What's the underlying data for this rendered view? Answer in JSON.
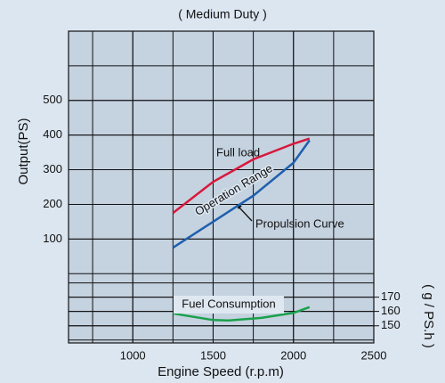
{
  "chart_data": {
    "type": "line",
    "title": "( Medium Duty )",
    "x_label": "Engine Speed (r.p.m)",
    "y_label": "Output(PS)",
    "y2_label": "( g / PS.h )",
    "xlim": [
      600,
      2500
    ],
    "xticks": [
      1000,
      1500,
      2000,
      2500
    ],
    "xgrid": [
      750,
      1000,
      1250,
      1500,
      1750,
      2000,
      2250
    ],
    "ylim": [
      -200,
      700
    ],
    "yticks": [
      100,
      200,
      300,
      400,
      500
    ],
    "ygrid": [
      0,
      100,
      200,
      300,
      400,
      500,
      600
    ],
    "y2lim": [
      138,
      356
    ],
    "y2ticks": [
      170,
      160,
      150
    ],
    "y2grid": [
      140,
      150,
      160,
      170,
      180
    ],
    "grid": true,
    "series": [
      {
        "name": "Full load",
        "color": "#d8173c",
        "x": [
          1250,
          1500,
          1750,
          2000,
          2100
        ],
        "values": [
          175,
          265,
          330,
          375,
          390
        ]
      },
      {
        "name": "Propulsion Curve",
        "color": "#1f5fae",
        "x": [
          1250,
          1500,
          1750,
          2000,
          2100
        ],
        "values": [
          75,
          150,
          225,
          320,
          385
        ]
      },
      {
        "name": "Fuel Consumption",
        "color": "#1aa04b",
        "axis": "y2",
        "x": [
          1250,
          1500,
          1600,
          1800,
          2000,
          2100
        ],
        "values": [
          158.6,
          154,
          153.7,
          155.5,
          159,
          163
        ]
      }
    ],
    "annotations": [
      "Operation Range"
    ]
  }
}
